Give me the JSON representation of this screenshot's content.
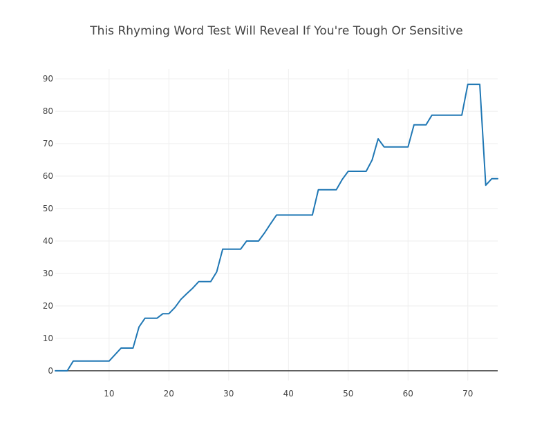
{
  "chart_data": {
    "type": "line",
    "title": "This Rhyming Word Test Will Reveal If You're Tough Or Sensitive",
    "xlabel": "",
    "ylabel": "",
    "xlim": [
      1,
      75
    ],
    "ylim": [
      -3,
      93
    ],
    "x_ticks": [
      10,
      20,
      30,
      40,
      50,
      60,
      70
    ],
    "y_ticks": [
      0,
      10,
      20,
      30,
      40,
      50,
      60,
      70,
      80,
      90
    ],
    "grid": true,
    "legend": "none",
    "series": [
      {
        "color": "#1f77b4",
        "x": [
          1,
          2,
          3,
          4,
          5,
          6,
          7,
          8,
          9,
          10,
          11,
          12,
          13,
          14,
          15,
          16,
          17,
          18,
          19,
          20,
          21,
          22,
          23,
          24,
          25,
          26,
          27,
          28,
          29,
          30,
          31,
          32,
          33,
          34,
          35,
          36,
          37,
          38,
          39,
          40,
          41,
          42,
          43,
          44,
          45,
          46,
          47,
          48,
          49,
          50,
          51,
          52,
          53,
          54,
          55,
          56,
          57,
          58,
          59,
          60,
          61,
          62,
          63,
          64,
          65,
          66,
          67,
          68,
          69,
          70,
          71,
          72,
          73,
          74,
          75
        ],
        "y": [
          0,
          0,
          0,
          3,
          3,
          3,
          3,
          3,
          3,
          3,
          5,
          7,
          7,
          7,
          13.5,
          16.2,
          16.2,
          16.2,
          17.6,
          17.6,
          19.5,
          22,
          23.8,
          25.5,
          27.5,
          27.5,
          27.5,
          30.5,
          37.5,
          37.5,
          37.5,
          37.5,
          40,
          40,
          40,
          42.5,
          45.3,
          48,
          48,
          48,
          48,
          48,
          48,
          48,
          55.8,
          55.8,
          55.8,
          55.8,
          59,
          61.5,
          61.5,
          61.5,
          61.5,
          65,
          71.5,
          69,
          69,
          69,
          69,
          69,
          75.8,
          75.8,
          75.8,
          78.8,
          78.8,
          78.8,
          78.8,
          78.8,
          78.8,
          88.3,
          88.3,
          88.3,
          57.2,
          59.2,
          59.2
        ]
      }
    ]
  }
}
